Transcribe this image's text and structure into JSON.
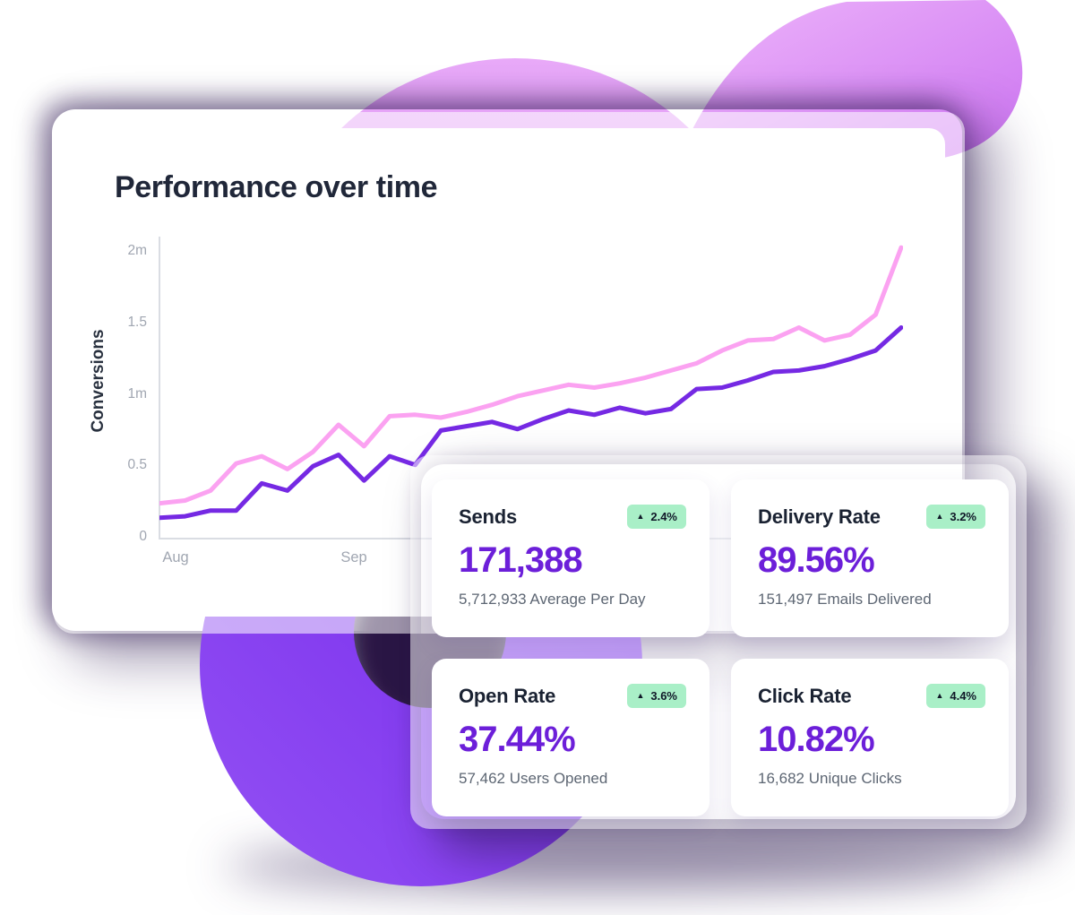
{
  "title": "Performance over time",
  "icons": {
    "up_arrow": "▲"
  },
  "colors": {
    "accent_purple": "#6C1FD9",
    "line_pink": "#FBA2F1",
    "line_purple": "#7529E3",
    "badge_bg": "#A9EFC7",
    "badge_text": "#101828",
    "donut_purple": "#7C2BF0",
    "blob_orchid": "#D98FF3",
    "title_text": "#202739",
    "tick_gray": "#A0A6B1"
  },
  "chart_data": {
    "type": "line",
    "title": "Performance over time",
    "xlabel": "",
    "ylabel": "Conversions",
    "x_tick_labels": [
      "Aug",
      "Sep"
    ],
    "y_tick_labels": [
      "0",
      "0.5",
      "1m",
      "1.5",
      "2m"
    ],
    "y_tick_values": [
      0,
      0.5,
      1,
      1.5,
      2
    ],
    "ylim": [
      0,
      2.1
    ],
    "grid": false,
    "legend": "none",
    "x_count": 30,
    "unit": "millions",
    "series": [
      {
        "name": "upper-pink",
        "color": "#FBA2F1",
        "values": [
          0.24,
          0.26,
          0.33,
          0.52,
          0.57,
          0.48,
          0.6,
          0.79,
          0.64,
          0.85,
          0.86,
          0.84,
          0.88,
          0.93,
          0.99,
          1.03,
          1.07,
          1.05,
          1.08,
          1.12,
          1.17,
          1.22,
          1.31,
          1.38,
          1.39,
          1.47,
          1.38,
          1.42,
          1.56,
          2.03
        ]
      },
      {
        "name": "lower-purple",
        "color": "#7529E3",
        "values": [
          0.14,
          0.15,
          0.19,
          0.19,
          0.38,
          0.33,
          0.5,
          0.58,
          0.4,
          0.57,
          0.51,
          0.75,
          0.78,
          0.81,
          0.76,
          0.83,
          0.89,
          0.86,
          0.91,
          0.87,
          0.9,
          1.04,
          1.05,
          1.1,
          1.16,
          1.17,
          1.2,
          1.25,
          1.31,
          1.47
        ]
      }
    ]
  },
  "stat_cards": [
    {
      "label": "Sends",
      "change": "2.4%",
      "direction": "up",
      "value": "171,388",
      "subtext": "5,712,933 Average Per Day"
    },
    {
      "label": "Delivery Rate",
      "change": "3.2%",
      "direction": "up",
      "value": "89.56%",
      "subtext": "151,497 Emails Delivered"
    },
    {
      "label": "Open Rate",
      "change": "3.6%",
      "direction": "up",
      "value": "37.44%",
      "subtext": "57,462 Users Opened"
    },
    {
      "label": "Click Rate",
      "change": "4.4%",
      "direction": "up",
      "value": "10.82%",
      "subtext": "16,682 Unique Clicks"
    }
  ]
}
